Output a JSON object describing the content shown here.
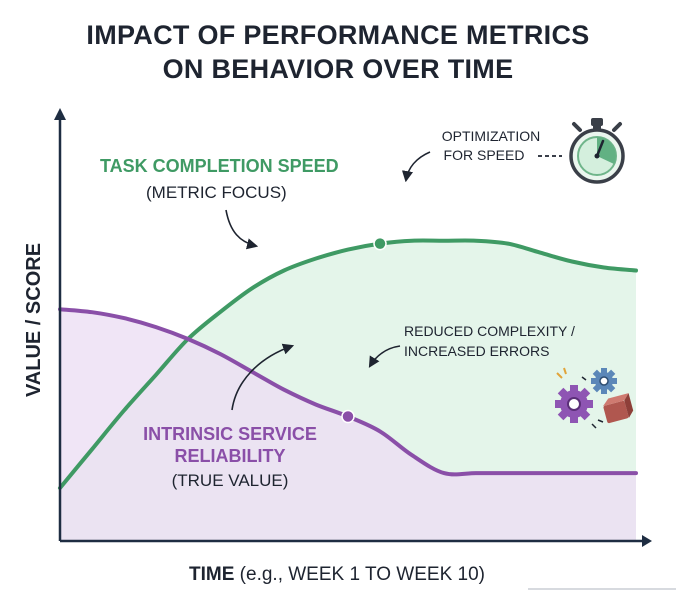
{
  "chart_data": {
    "type": "line",
    "title": [
      "IMPACT OF PERFORMANCE METRICS",
      "ON BEHAVIOR OVER TIME"
    ],
    "xlabel": {
      "main": "TIME",
      "detail": " (e.g., WEEK 1 TO WEEK 10)"
    },
    "ylabel": "VALUE / SCORE",
    "xlim": [
      1,
      10
    ],
    "ylim": [
      0,
      100
    ],
    "grid": false,
    "series": [
      {
        "name": "TASK COMPLETION SPEED",
        "subtitle": "(METRIC FOCUS)",
        "color": "#3f9a64",
        "fill": "#dff3e6",
        "x": [
          1,
          1.5,
          2,
          2.5,
          3,
          3.5,
          4,
          4.5,
          5,
          5.5,
          6,
          6.5,
          7,
          7.5,
          8,
          8.5,
          9,
          9.5,
          10
        ],
        "y": [
          0,
          13,
          26,
          38,
          50,
          59,
          67,
          73,
          77,
          80,
          82,
          83,
          83,
          83,
          82,
          79,
          76,
          74,
          73
        ],
        "highlight": {
          "x": 6,
          "y": 82
        }
      },
      {
        "name": "INTRINSIC SERVICE",
        "name2": "RELIABILITY",
        "subtitle": "(TRUE VALUE)",
        "color": "#8a4fa8",
        "fill": "#ecdff4",
        "x": [
          1,
          1.5,
          2,
          2.5,
          3,
          3.5,
          4,
          4.5,
          5,
          5.5,
          6,
          6.5,
          7,
          7.5,
          8,
          8.5,
          9,
          9.5,
          10
        ],
        "y": [
          60,
          59,
          57,
          54,
          50,
          45,
          39,
          33,
          28,
          24,
          19,
          11,
          5,
          5,
          5,
          5,
          5,
          5,
          5
        ],
        "highlight": {
          "x": 5.5,
          "y": 24
        }
      }
    ],
    "annotations": [
      {
        "label": [
          "OPTIMIZATION",
          "FOR SPEED"
        ],
        "icon": "stopwatch-icon"
      },
      {
        "label": [
          "REDUCED COMPLEXITY /",
          "INCREASED ERRORS"
        ],
        "icon": "gears-icon"
      }
    ]
  },
  "colors": {
    "axis": "#1e2d42",
    "text": "#1e2430",
    "green": "#3f9a64",
    "purple": "#8a4fa8"
  }
}
